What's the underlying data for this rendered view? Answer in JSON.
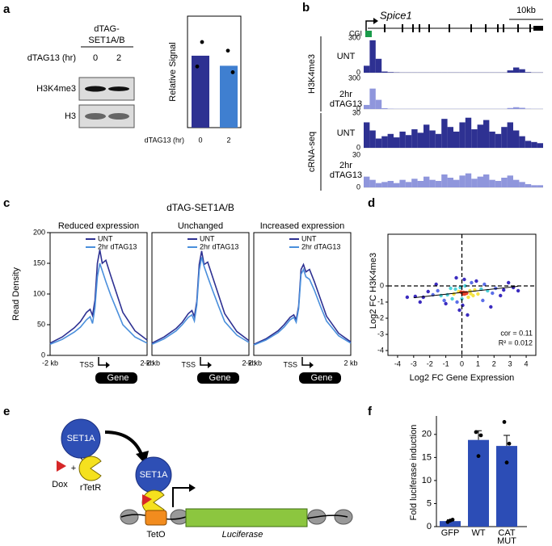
{
  "panel_labels": [
    "a",
    "b",
    "c",
    "d",
    "e",
    "f"
  ],
  "a": {
    "blot": {
      "header": [
        "dTAG-",
        "SET1A/B"
      ],
      "condition_label": "dTAG13 (hr)",
      "lanes": [
        "0",
        "2"
      ],
      "rows": [
        "H3K4me3",
        "H3"
      ]
    },
    "chart": {
      "type": "bar",
      "ylabel": "Relative Signal",
      "xlabel": "dTAG13 (hr)",
      "categories": [
        "0",
        "2"
      ],
      "values": [
        1.0,
        0.86
      ],
      "colors": [
        "#2e3192",
        "#3f7fd0"
      ],
      "points": [
        [
          1.19,
          0.85
        ],
        [
          1.07,
          0.77
        ]
      ],
      "ylim": [
        0,
        1.55
      ]
    }
  },
  "b": {
    "gene": "Spice1",
    "scale": "10kb",
    "cgi": "CGI",
    "groups": [
      "H3K4me3",
      "cRNA-seq"
    ],
    "tracks": [
      {
        "type": "bar",
        "group": 0,
        "label": [
          "UNT"
        ],
        "ylim": [
          0,
          300
        ],
        "yticks": [
          0,
          300
        ],
        "color": "#2e3192",
        "values": [
          60,
          280,
          120,
          10,
          5,
          3,
          2,
          2,
          2,
          2,
          2,
          2,
          2,
          2,
          2,
          2,
          2,
          2,
          2,
          2,
          2,
          2,
          2,
          2,
          20,
          45,
          30,
          5,
          2,
          2
        ]
      },
      {
        "type": "bar",
        "group": 0,
        "label": [
          "2hr",
          "dTAG13"
        ],
        "ylim": [
          0,
          300
        ],
        "yticks": [
          0,
          300
        ],
        "color": "#8f96dc",
        "values": [
          40,
          200,
          90,
          8,
          3,
          2,
          2,
          2,
          2,
          2,
          2,
          2,
          2,
          2,
          2,
          2,
          2,
          2,
          2,
          2,
          2,
          2,
          2,
          2,
          10,
          18,
          12,
          3,
          2,
          2
        ]
      },
      {
        "type": "bar",
        "group": 1,
        "label": [
          "UNT"
        ],
        "ylim": [
          0,
          30
        ],
        "yticks": [
          0,
          30
        ],
        "color": "#2e3192",
        "values": [
          22,
          15,
          8,
          10,
          12,
          9,
          14,
          11,
          16,
          13,
          20,
          15,
          12,
          25,
          18,
          14,
          22,
          26,
          16,
          20,
          24,
          14,
          12,
          18,
          22,
          15,
          10,
          6,
          5,
          4
        ]
      },
      {
        "type": "bar",
        "group": 1,
        "label": [
          "2hr",
          "dTAG13"
        ],
        "ylim": [
          0,
          30
        ],
        "yticks": [
          0,
          30
        ],
        "color": "#8f96dc",
        "values": [
          10,
          7,
          4,
          5,
          6,
          4,
          7,
          5,
          8,
          6,
          10,
          7,
          6,
          12,
          9,
          7,
          11,
          13,
          8,
          10,
          12,
          7,
          6,
          9,
          11,
          7,
          5,
          3,
          2,
          2
        ]
      }
    ]
  },
  "c": {
    "title": "dTAG-SET1A/B",
    "ylabel": "Read Density",
    "ylim": [
      0,
      200
    ],
    "yticks": [
      0,
      50,
      100,
      150,
      200
    ],
    "xlim": [
      -2,
      2
    ],
    "x": [
      -2,
      -1.5,
      -1,
      -0.75,
      -0.5,
      -0.35,
      -0.25,
      -0.15,
      -0.05,
      0.05,
      0.15,
      0.3,
      0.5,
      0.75,
      1,
      1.5,
      2
    ],
    "xlabels": {
      "left": "-2 kb",
      "tss": "TSS",
      "right": "2 kb",
      "gene": "Gene"
    },
    "plots": [
      {
        "type": "line",
        "subtitle": "Reduced expression",
        "series": [
          {
            "name": "UNT",
            "color": "#2e3192",
            "values": [
              20,
              30,
              45,
              55,
              70,
              75,
              65,
              90,
              150,
              172,
              150,
              155,
              130,
              100,
              70,
              40,
              25
            ]
          },
          {
            "name": "2hr dTAG13",
            "color": "#4a8fdc",
            "values": [
              18,
              26,
              38,
              46,
              58,
              63,
              52,
              78,
              128,
              150,
              138,
              120,
              98,
              74,
              50,
              30,
              20
            ]
          }
        ]
      },
      {
        "type": "line",
        "subtitle": "Unchanged",
        "series": [
          {
            "name": "UNT",
            "color": "#2e3192",
            "values": [
              20,
              30,
              44,
              54,
              68,
              73,
              63,
              88,
              148,
              170,
              148,
              152,
              128,
              98,
              68,
              39,
              24
            ]
          },
          {
            "name": "2hr dTAG13",
            "color": "#4a8fdc",
            "values": [
              18,
              27,
              40,
              50,
              62,
              66,
              56,
              82,
              138,
              160,
              145,
              128,
              106,
              80,
              55,
              33,
              21
            ]
          }
        ]
      },
      {
        "type": "line",
        "subtitle": "Increased expression",
        "series": [
          {
            "name": "UNT",
            "color": "#2e3192",
            "values": [
              18,
              27,
              40,
              50,
              62,
              66,
              58,
              80,
              140,
              148,
              136,
              140,
              120,
              92,
              64,
              36,
              22
            ]
          },
          {
            "name": "2hr dTAG13",
            "color": "#4a8fdc",
            "values": [
              17,
              25,
              37,
              46,
              58,
              62,
              54,
              76,
              132,
              140,
              128,
              124,
              106,
              80,
              56,
              32,
              20
            ]
          }
        ]
      }
    ]
  },
  "d": {
    "type": "scatter",
    "xlabel": "Log2 FC Gene Expression",
    "ylabel": "Log2 FC H3K4me3",
    "xlim": [
      -4.6,
      4.6
    ],
    "ylim": [
      -4.3,
      3.2
    ],
    "xticks": [
      -4,
      -3,
      -2,
      -1,
      0,
      1,
      2,
      3,
      4
    ],
    "yticks": [
      -4,
      -3,
      -2,
      -1,
      0
    ],
    "x": [
      0.1,
      -0.2,
      0.3,
      0.5,
      -0.5,
      0.8,
      -0.9,
      1.2,
      -1.3,
      1.6,
      -1.8,
      2.1,
      -2.4,
      2.6,
      -2.9,
      3.2,
      0.0,
      0.2,
      -0.1,
      0.4,
      -0.4,
      0.7,
      -0.7,
      1.0,
      -1.1,
      1.4,
      -1.5,
      1.9,
      -2.1,
      2.4,
      0.05,
      -0.3,
      0.6,
      -0.6,
      0.9,
      -1.0,
      1.3,
      -1.6,
      1.8,
      3.5,
      -3.4,
      0.15,
      -0.15,
      0.35,
      -0.35,
      2.9,
      -2.6,
      0.25,
      -0.05,
      0.55
    ],
    "y": [
      -0.4,
      -0.35,
      -0.45,
      -0.3,
      -0.5,
      -0.25,
      -0.55,
      -0.2,
      -0.6,
      -0.3,
      -0.55,
      -0.15,
      -0.7,
      -0.25,
      -0.65,
      -0.1,
      -0.8,
      0.0,
      -0.1,
      -0.7,
      -0.2,
      -0.6,
      -0.15,
      -0.5,
      -0.9,
      0.1,
      -0.3,
      -0.45,
      -0.35,
      -0.6,
      -1.2,
      -1.0,
      0.2,
      -0.8,
      0.3,
      -1.1,
      -0.9,
      0.1,
      -1.3,
      -0.3,
      -0.7,
      0.4,
      -1.5,
      -1.8,
      0.5,
      0.2,
      -1.0,
      -0.42,
      -0.38,
      -0.48
    ],
    "fit": {
      "x": [
        -3,
        3.5
      ],
      "y": [
        -0.73,
        -0.02
      ]
    },
    "annotations": [
      "cor = 0.11",
      "R² = 0.012"
    ],
    "palette": [
      "#3b2bbf",
      "#5b6ee8",
      "#4fd1d9",
      "#f5e342",
      "#e8402a"
    ]
  },
  "e": {
    "labels": {
      "set1a": "SET1A",
      "dox": "Dox",
      "plus": "+",
      "rtetr": "rTetR",
      "teto": "TetO",
      "luciferase": "Luciferase"
    }
  },
  "f": {
    "type": "bar",
    "ylabel": "Fold luciferase induction",
    "ylim": [
      0,
      24
    ],
    "yticks": [
      0,
      5,
      10,
      15,
      20
    ],
    "categories": [
      [
        "GFP"
      ],
      [
        "WT"
      ],
      [
        "CAT",
        "MUT"
      ]
    ],
    "values": [
      1.2,
      18.8,
      17.5
    ],
    "errors": [
      0.3,
      2.0,
      2.3
    ],
    "points": [
      [
        1.0,
        1.5,
        1.3
      ],
      [
        20.5,
        19.8,
        15.3
      ],
      [
        22.7,
        18.0,
        13.9
      ]
    ],
    "color": "#2c4db6"
  }
}
